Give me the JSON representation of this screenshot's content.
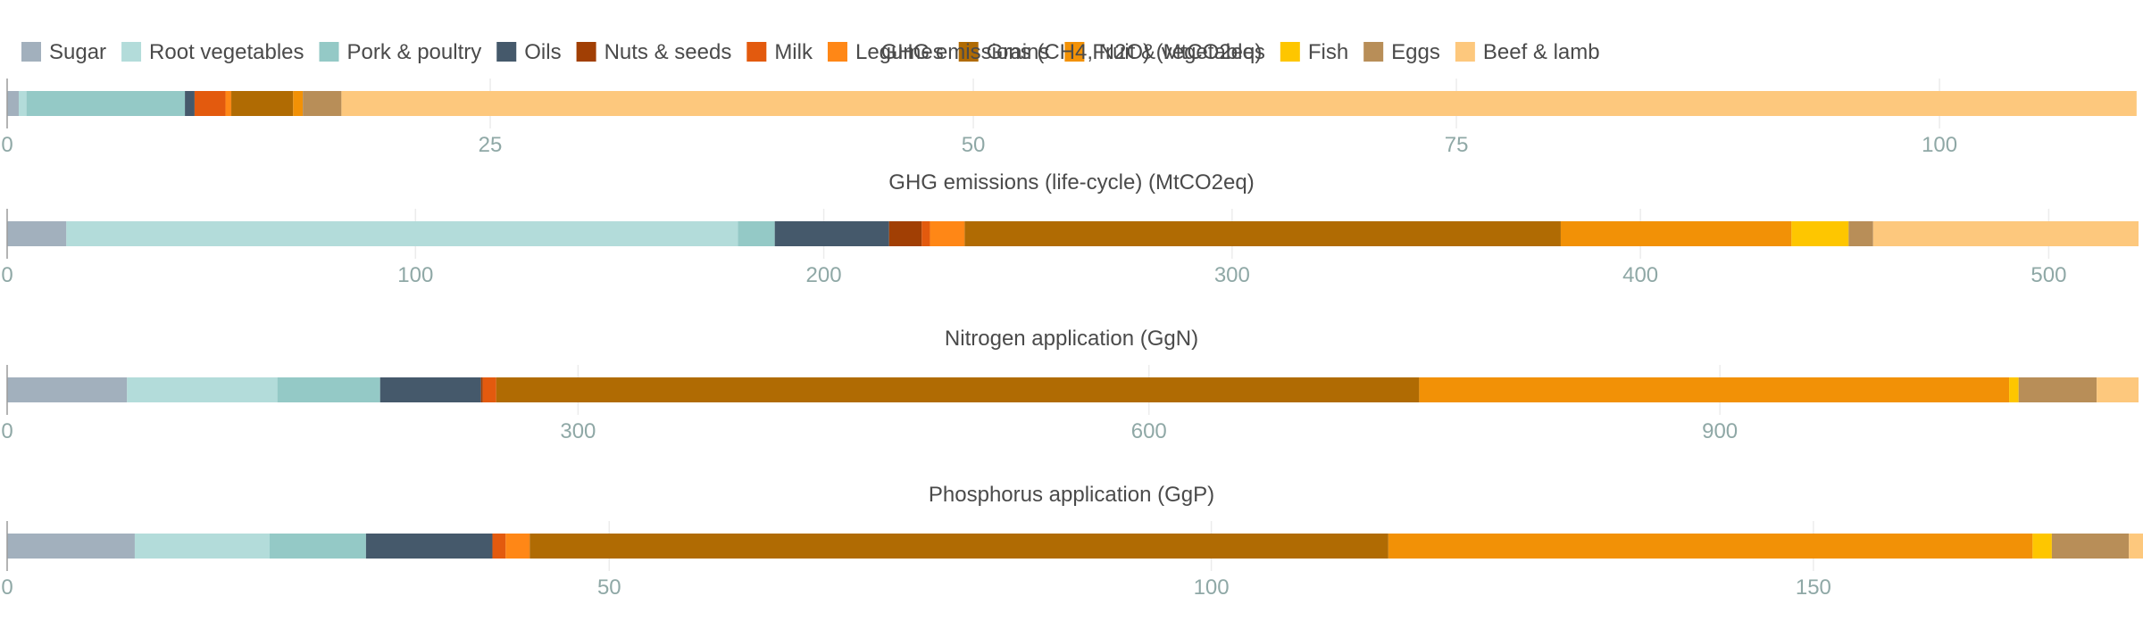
{
  "chart_data": {
    "type": "bar",
    "orientation": "horizontal",
    "stacked": true,
    "legend": {
      "placement": "top-left",
      "entries": [
        {
          "name": "Sugar",
          "color": "#a2b0bd"
        },
        {
          "name": "Root vegetables",
          "color": "#b3dcda"
        },
        {
          "name": "Pork & poultry",
          "color": "#94c9c6"
        },
        {
          "name": "Oils",
          "color": "#45596b"
        },
        {
          "name": "Nuts & seeds",
          "color": "#a13f04"
        },
        {
          "name": "Milk",
          "color": "#e35a0e"
        },
        {
          "name": "Legumes",
          "color": "#ff8716"
        },
        {
          "name": "Grains",
          "color": "#b06b03"
        },
        {
          "name": "Fruit & vegetables",
          "color": "#f29106"
        },
        {
          "name": "Fish",
          "color": "#fec600"
        },
        {
          "name": "Eggs",
          "color": "#b88e58"
        },
        {
          "name": "Beef & lamb",
          "color": "#fdc87d"
        }
      ]
    },
    "charts": [
      {
        "title": "GHG emissions (CH4, N2O) (MtCO2eq)",
        "xlim": [
          0,
          110.3
        ],
        "ticks": [
          0,
          25,
          50,
          75,
          100
        ],
        "tick_labels": [
          "0",
          "25",
          "50",
          "75",
          "100"
        ],
        "grid": true,
        "values": [
          0.6,
          0.4,
          8.2,
          0.5,
          0.0,
          1.6,
          0.3,
          3.2,
          0.5,
          0.0,
          2.0,
          92.9
        ]
      },
      {
        "title": "GHG emissions (life-cycle) (MtCO2eq)",
        "xlim": [
          0,
          522
        ],
        "ticks": [
          0,
          100,
          200,
          300,
          400,
          500
        ],
        "tick_labels": [
          "0",
          "100",
          "200",
          "300",
          "400",
          "500"
        ],
        "grid": true,
        "values": [
          14.5,
          164.5,
          9.0,
          28.0,
          8.0,
          2.0,
          8.5,
          146.0,
          56.5,
          14.0,
          6.0,
          65.0
        ]
      },
      {
        "title": "Nitrogen application (GgN)",
        "xlim": [
          0,
          1120
        ],
        "ticks": [
          0,
          300,
          600,
          900
        ],
        "tick_labels": [
          "0",
          "300",
          "600",
          "900"
        ],
        "grid": true,
        "values": [
          63,
          79,
          54,
          53,
          1,
          7,
          0,
          485,
          310,
          5,
          41,
          22
        ]
      },
      {
        "title": "Phosphorus application (GgP)",
        "xlim": [
          0,
          177
        ],
        "ticks": [
          0,
          50,
          100,
          150
        ],
        "tick_labels": [
          "0",
          "50",
          "100",
          "150"
        ],
        "grid": true,
        "values": [
          10.6,
          11.2,
          8.0,
          10.5,
          0.0,
          1.1,
          2.0,
          71.3,
          53.5,
          1.6,
          6.4,
          4.0
        ]
      }
    ]
  }
}
